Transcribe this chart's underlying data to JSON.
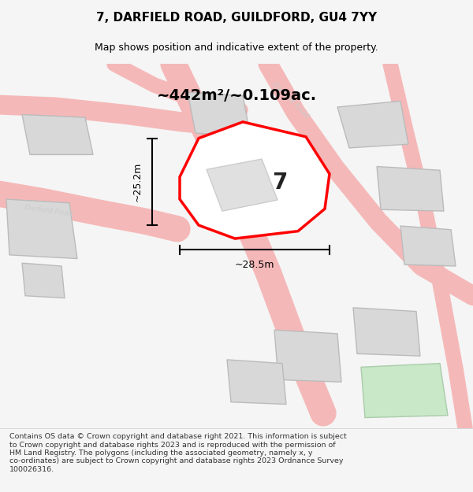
{
  "title": "7, DARFIELD ROAD, GUILDFORD, GU4 7YY",
  "subtitle": "Map shows position and indicative extent of the property.",
  "area_text": "~442m²/~0.109ac.",
  "width_label": "~28.5m",
  "height_label": "~25.2m",
  "number_label": "7",
  "footer_line1": "Contains OS data © Crown copyright and database right 2021. This information is subject",
  "footer_line2": "to Crown copyright and database rights 2023 and is reproduced with the permission of",
  "footer_line3": "HM Land Registry. The polygons (including the associated geometry, namely x, y",
  "footer_line4": "co-ordinates) are subject to Crown copyright and database rights 2023 Ordnance Survey",
  "footer_line5": "100026316.",
  "bg_color": "#f5f5f5",
  "map_bg": "#eeeeee",
  "road_color_light": "#f5b8b8",
  "building_color": "#d8d8d8",
  "building_outline": "#bbbbbb",
  "highlight_color": "#ff0000",
  "highlight_fill": "#ffffff",
  "title_color": "#000000",
  "footer_color": "#333333"
}
